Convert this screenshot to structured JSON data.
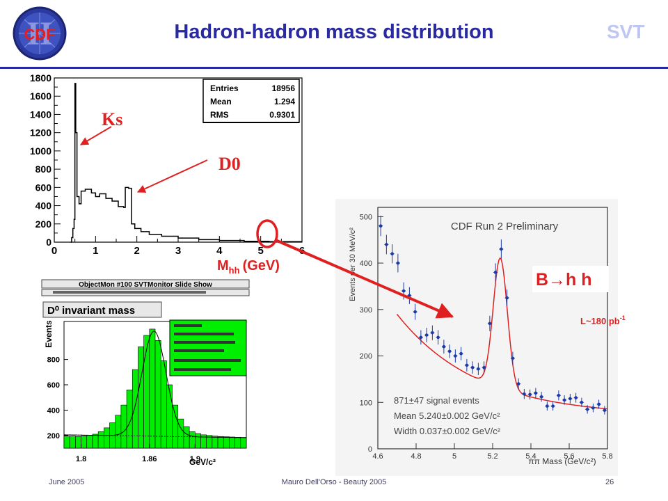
{
  "slide": {
    "title": "Hadron-hadron mass distribution",
    "corner_label": "SVT",
    "logo_text": "CDF",
    "footer": {
      "left": "June 2005",
      "center": "Mauro Dell'Orso - Beauty 2005",
      "page": "26"
    },
    "colors": {
      "title": "#2a2aa0",
      "accent_red": "#e02020",
      "svt": "#bfc6f2",
      "fill_green": "#00ee00"
    }
  },
  "annotations": {
    "ks": "Ks",
    "d0": "D0",
    "mhh_main": "M",
    "mhh_sub": "hh",
    "mhh_unit": "(GeV)",
    "bhh": "B→h h",
    "lumi_main": "L~180 pb",
    "lumi_sup": "-1"
  },
  "chart_data": [
    {
      "type": "bar",
      "title": "",
      "xlabel": "M hh (GeV)",
      "ylabel": "",
      "xlim": [
        0,
        6
      ],
      "ylim": [
        0,
        1800
      ],
      "x_ticks": [
        "0",
        "1",
        "2",
        "3",
        "4",
        "5",
        "6"
      ],
      "y_ticks": [
        "0",
        "200",
        "400",
        "600",
        "800",
        "1000",
        "1200",
        "1400",
        "1600",
        "1800"
      ],
      "bins": [
        {
          "x": 0.4,
          "y": 0
        },
        {
          "x": 0.42,
          "y": 50
        },
        {
          "x": 0.45,
          "y": 150
        },
        {
          "x": 0.48,
          "y": 250
        },
        {
          "x": 0.5,
          "y": 1740
        },
        {
          "x": 0.52,
          "y": 1200
        },
        {
          "x": 0.55,
          "y": 500
        },
        {
          "x": 0.6,
          "y": 420
        },
        {
          "x": 0.65,
          "y": 560
        },
        {
          "x": 0.75,
          "y": 580
        },
        {
          "x": 0.9,
          "y": 540
        },
        {
          "x": 1.0,
          "y": 500
        },
        {
          "x": 1.1,
          "y": 530
        },
        {
          "x": 1.25,
          "y": 480
        },
        {
          "x": 1.4,
          "y": 450
        },
        {
          "x": 1.55,
          "y": 390
        },
        {
          "x": 1.68,
          "y": 380
        },
        {
          "x": 1.72,
          "y": 600
        },
        {
          "x": 1.8,
          "y": 590
        },
        {
          "x": 1.87,
          "y": 200
        },
        {
          "x": 1.95,
          "y": 150
        },
        {
          "x": 2.1,
          "y": 115
        },
        {
          "x": 2.3,
          "y": 85
        },
        {
          "x": 2.6,
          "y": 65
        },
        {
          "x": 3.0,
          "y": 45
        },
        {
          "x": 3.5,
          "y": 28
        },
        {
          "x": 4.0,
          "y": 18
        },
        {
          "x": 4.6,
          "y": 10
        },
        {
          "x": 5.2,
          "y": 6
        },
        {
          "x": 6.0,
          "y": 6
        }
      ],
      "stats": [
        {
          "label": "Entries",
          "value": "18956"
        },
        {
          "label": "Mean",
          "value": "1.294"
        },
        {
          "label": "RMS",
          "value": "0.9301"
        }
      ]
    },
    {
      "type": "bar",
      "panel_header": "ObjectMon #100 SVTMonitor   Slide Show",
      "title": "D⁰ invariant mass",
      "xlabel": "GeV/c²",
      "ylabel": "Events",
      "xlim": [
        1.785,
        1.945
      ],
      "ylim": [
        100,
        1100
      ],
      "x_ticks": [
        {
          "v": 1.8,
          "label": "1.8"
        },
        {
          "v": 1.86,
          "label": "1.86"
        },
        {
          "v": 1.9,
          "label": "1.9"
        }
      ],
      "y_ticks": [
        200,
        400,
        600,
        800
      ],
      "bins_x": [
        1.7875,
        1.7925,
        1.7975,
        1.8025,
        1.8075,
        1.8125,
        1.8175,
        1.8225,
        1.8275,
        1.8325,
        1.8375,
        1.8425,
        1.8475,
        1.8525,
        1.8575,
        1.8625,
        1.8675,
        1.8725,
        1.8775,
        1.8825,
        1.8875,
        1.8925,
        1.8975,
        1.9025,
        1.9075,
        1.9125,
        1.9175,
        1.9225,
        1.9275,
        1.9325,
        1.9375,
        1.9425
      ],
      "bins_y": [
        195,
        195,
        192,
        196,
        200,
        210,
        230,
        260,
        300,
        360,
        440,
        560,
        720,
        900,
        990,
        1040,
        950,
        790,
        600,
        440,
        330,
        270,
        230,
        215,
        205,
        200,
        195,
        192,
        190,
        188,
        186,
        185
      ],
      "fit_note": "gaussian + linear background"
    },
    {
      "type": "scatter",
      "title": "CDF Run 2 Preliminary",
      "xlabel": "ππ Mass (GeV/c²)",
      "ylabel": "Events per 30 MeV/c²",
      "xlim": [
        4.6,
        5.8
      ],
      "ylim": [
        0,
        520
      ],
      "x_ticks": [
        4.6,
        4.8,
        5,
        5.2,
        5.4,
        5.6,
        5.8
      ],
      "y_ticks": [
        0,
        100,
        200,
        300,
        400,
        500
      ],
      "points": [
        {
          "x": 4.615,
          "y": 480
        },
        {
          "x": 4.645,
          "y": 440
        },
        {
          "x": 4.675,
          "y": 420
        },
        {
          "x": 4.705,
          "y": 400
        },
        {
          "x": 4.735,
          "y": 340
        },
        {
          "x": 4.765,
          "y": 330
        },
        {
          "x": 4.795,
          "y": 295
        },
        {
          "x": 4.825,
          "y": 240
        },
        {
          "x": 4.855,
          "y": 245
        },
        {
          "x": 4.885,
          "y": 250
        },
        {
          "x": 4.915,
          "y": 240
        },
        {
          "x": 4.945,
          "y": 220
        },
        {
          "x": 4.975,
          "y": 210
        },
        {
          "x": 5.005,
          "y": 200
        },
        {
          "x": 5.035,
          "y": 205
        },
        {
          "x": 5.065,
          "y": 180
        },
        {
          "x": 5.095,
          "y": 175
        },
        {
          "x": 5.125,
          "y": 172
        },
        {
          "x": 5.155,
          "y": 175
        },
        {
          "x": 5.185,
          "y": 270
        },
        {
          "x": 5.215,
          "y": 380
        },
        {
          "x": 5.245,
          "y": 430
        },
        {
          "x": 5.275,
          "y": 325
        },
        {
          "x": 5.305,
          "y": 195
        },
        {
          "x": 5.335,
          "y": 140
        },
        {
          "x": 5.365,
          "y": 118
        },
        {
          "x": 5.395,
          "y": 117
        },
        {
          "x": 5.425,
          "y": 120
        },
        {
          "x": 5.455,
          "y": 112
        },
        {
          "x": 5.485,
          "y": 92
        },
        {
          "x": 5.515,
          "y": 92
        },
        {
          "x": 5.545,
          "y": 115
        },
        {
          "x": 5.575,
          "y": 105
        },
        {
          "x": 5.605,
          "y": 108
        },
        {
          "x": 5.635,
          "y": 110
        },
        {
          "x": 5.665,
          "y": 100
        },
        {
          "x": 5.695,
          "y": 85
        },
        {
          "x": 5.725,
          "y": 88
        },
        {
          "x": 5.755,
          "y": 96
        },
        {
          "x": 5.785,
          "y": 83
        }
      ],
      "annotations": [
        "871±47 signal events",
        "Mean 5.240±0.002 GeV/c²",
        "Width 0.037±0.002 GeV/c²"
      ],
      "fit_color": "#e02020"
    }
  ]
}
